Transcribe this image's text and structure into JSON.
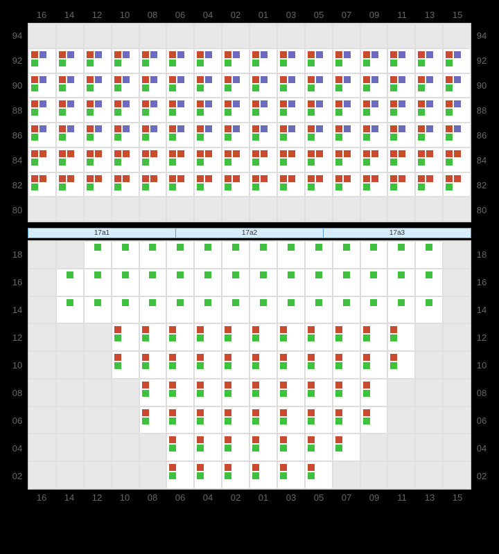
{
  "columns": [
    "16",
    "14",
    "12",
    "10",
    "08",
    "06",
    "04",
    "02",
    "01",
    "03",
    "05",
    "07",
    "09",
    "11",
    "13",
    "15"
  ],
  "colors": {
    "red": "#c94a2c",
    "purple": "#6c6cbf",
    "green": "#3fc13f",
    "bg_empty": "#e8e8e8",
    "bg_filled": "#ffffff",
    "grid_border": "#e0e0e0",
    "label": "#666666",
    "zone_bg": "#d4ecfc",
    "zone_border": "#5aa3d8"
  },
  "upper": {
    "rows": [
      "94",
      "92",
      "90",
      "88",
      "86",
      "84",
      "82",
      "80"
    ],
    "cells": {
      "94": [],
      "92": {
        "range": [
          0,
          15
        ],
        "markers": [
          "red",
          "purple",
          "green"
        ]
      },
      "90": {
        "range": [
          0,
          15
        ],
        "markers": [
          "red",
          "purple",
          "green"
        ]
      },
      "88": {
        "range": [
          0,
          15
        ],
        "markers": [
          "red",
          "purple",
          "green"
        ]
      },
      "86": {
        "range": [
          0,
          15
        ],
        "markers": [
          "red",
          "purple",
          "green"
        ]
      },
      "84": {
        "range": [
          0,
          15
        ],
        "markers": [
          "red",
          "red",
          "green"
        ]
      },
      "82": {
        "range": [
          0,
          15
        ],
        "markers": [
          "red",
          "red",
          "green"
        ]
      },
      "80": []
    }
  },
  "zones": [
    "17a1",
    "17a2",
    "17a3"
  ],
  "lower": {
    "rows": [
      "18",
      "16",
      "14",
      "12",
      "10",
      "08",
      "06",
      "04",
      "02"
    ],
    "cells": {
      "18": {
        "range": [
          2,
          14
        ],
        "markers": [
          "green"
        ]
      },
      "16": {
        "range": [
          1,
          14
        ],
        "markers": [
          "green"
        ]
      },
      "14": {
        "range": [
          1,
          14
        ],
        "markers": [
          "green"
        ]
      },
      "12": {
        "range": [
          3,
          13
        ],
        "markers": [
          "red",
          "green"
        ]
      },
      "10": {
        "range": [
          3,
          13
        ],
        "markers": [
          "red",
          "green"
        ]
      },
      "08": {
        "range": [
          4,
          12
        ],
        "markers": [
          "red",
          "green"
        ]
      },
      "06": {
        "range": [
          4,
          12
        ],
        "markers": [
          "red",
          "green"
        ]
      },
      "04": {
        "range": [
          5,
          11
        ],
        "markers": [
          "red",
          "green"
        ]
      },
      "02": {
        "range": [
          5,
          10
        ],
        "markers": [
          "red",
          "green"
        ]
      }
    }
  }
}
